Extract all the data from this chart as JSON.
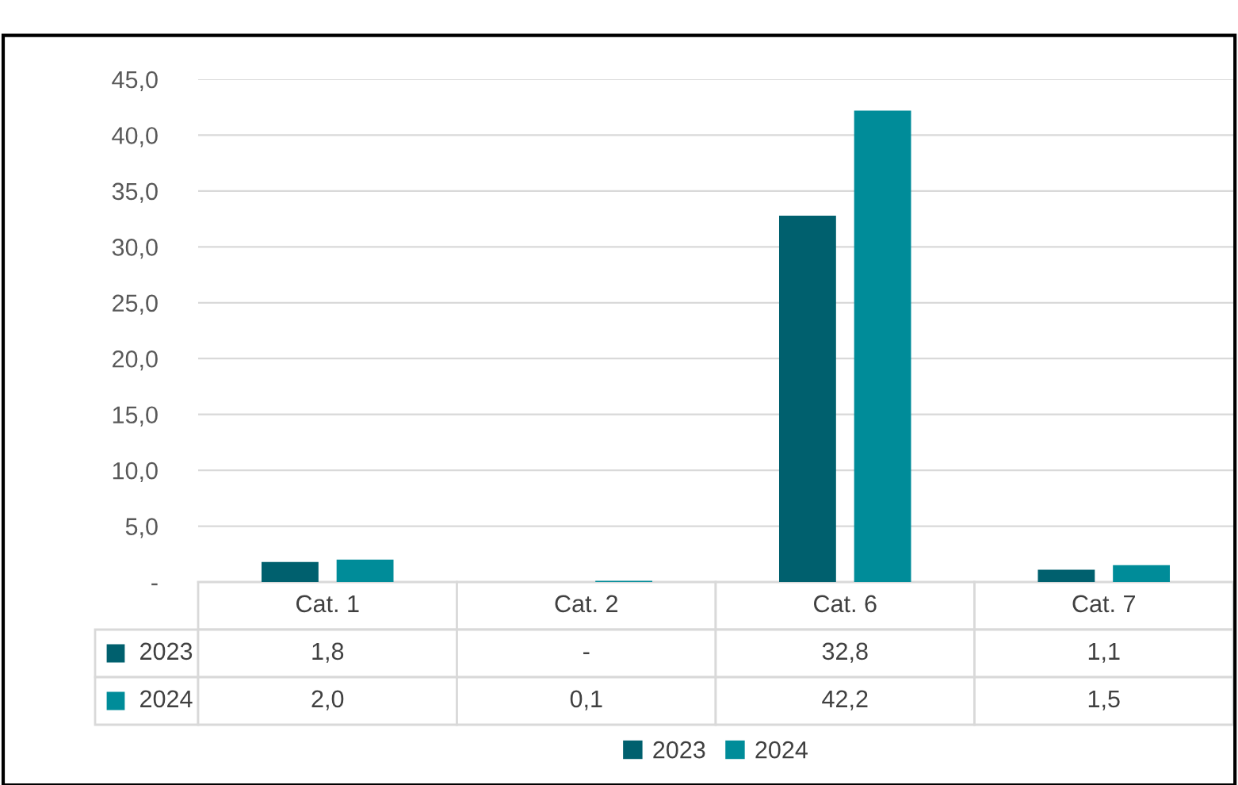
{
  "chart_data": {
    "type": "bar",
    "categories": [
      "Cat. 1",
      "Cat. 2",
      "Cat. 6",
      "Cat. 7"
    ],
    "series": [
      {
        "name": "2023",
        "color": "#00606e",
        "values": [
          1.8,
          null,
          32.8,
          1.1
        ],
        "value_labels": [
          "1,8",
          "-",
          "32,8",
          "1,1"
        ]
      },
      {
        "name": "2024",
        "color": "#008c99",
        "values": [
          2.0,
          0.1,
          42.2,
          1.5
        ],
        "value_labels": [
          "2,0",
          "0,1",
          "42,2",
          "1,5"
        ]
      }
    ],
    "ylim": [
      0,
      45
    ],
    "yticks": [
      {
        "value": 0,
        "label": "-"
      },
      {
        "value": 5,
        "label": "5,0"
      },
      {
        "value": 10,
        "label": "10,0"
      },
      {
        "value": 15,
        "label": "15,0"
      },
      {
        "value": 20,
        "label": "20,0"
      },
      {
        "value": 25,
        "label": "25,0"
      },
      {
        "value": 30,
        "label": "30,0"
      },
      {
        "value": 35,
        "label": "35,0"
      },
      {
        "value": 40,
        "label": "40,0"
      },
      {
        "value": 45,
        "label": "45,0"
      }
    ],
    "grid": "y",
    "legend": "bottom"
  }
}
